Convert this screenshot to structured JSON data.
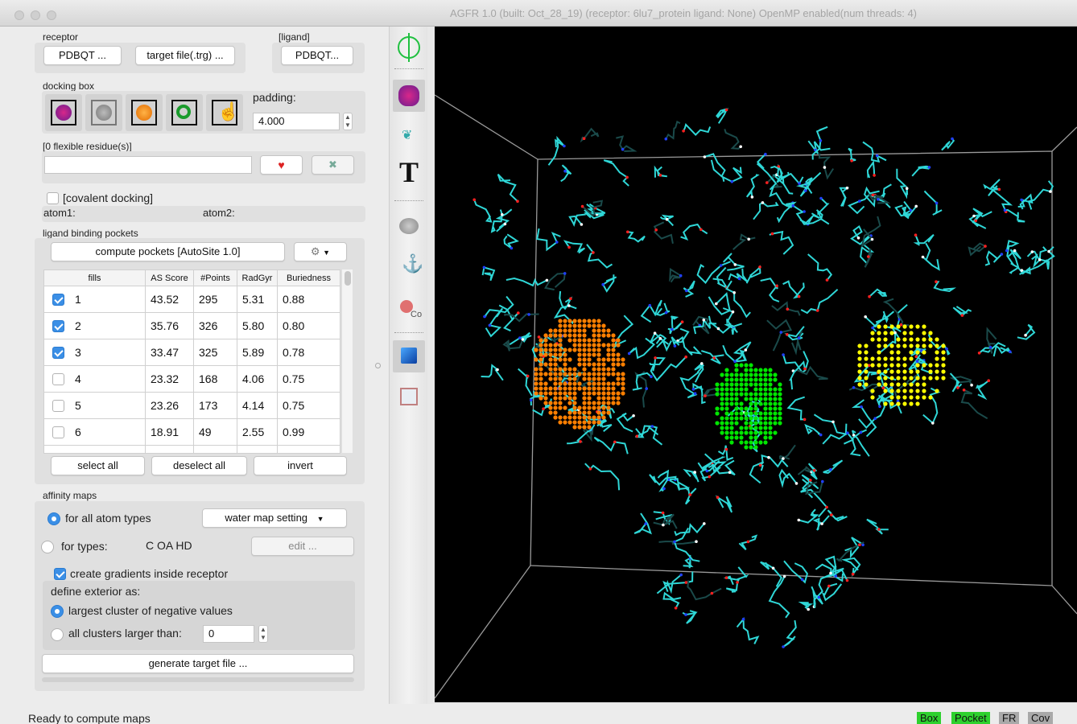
{
  "window": {
    "title": "AGFR 1.0 (built: Oct_28_19) (receptor: 6lu7_protein ligand: None) OpenMP enabled(num threads: 4)"
  },
  "receptor": {
    "label": "receptor",
    "pdbqt_button": "PDBQT ...",
    "target_button": "target file(.trg) ..."
  },
  "ligand": {
    "label": "[ligand]",
    "pdbqt_button": "PDBQT..."
  },
  "docking_box": {
    "label": "docking box",
    "padding_label": "padding:",
    "padding_value": "4.000",
    "modes": [
      "box-receptor-icon",
      "box-ligand-icon",
      "box-pocket-icon",
      "box-residue-icon",
      "box-manual-icon"
    ]
  },
  "flex": {
    "label": "[0 flexible residue(s)]",
    "input_value": ""
  },
  "covalent": {
    "label": "[covalent docking]",
    "checked": false,
    "atom1": "atom1:",
    "atom2": "atom2:"
  },
  "pockets": {
    "label": "ligand binding pockets",
    "compute_button": "compute pockets [AutoSite 1.0]",
    "columns": [
      "fills",
      "AS Score",
      "#Points",
      "RadGyr",
      "Buriedness"
    ],
    "rows": [
      {
        "fill": "1",
        "score": "43.52",
        "points": "295",
        "radgyr": "5.31",
        "buried": "0.88",
        "checked": true
      },
      {
        "fill": "2",
        "score": "35.76",
        "points": "326",
        "radgyr": "5.80",
        "buried": "0.80",
        "checked": true
      },
      {
        "fill": "3",
        "score": "33.47",
        "points": "325",
        "radgyr": "5.89",
        "buried": "0.78",
        "checked": true
      },
      {
        "fill": "4",
        "score": "23.32",
        "points": "168",
        "radgyr": "4.06",
        "buried": "0.75",
        "checked": false
      },
      {
        "fill": "5",
        "score": "23.26",
        "points": "173",
        "radgyr": "4.14",
        "buried": "0.75",
        "checked": false
      },
      {
        "fill": "6",
        "score": "18.91",
        "points": "49",
        "radgyr": "2.55",
        "buried": "0.99",
        "checked": false
      }
    ],
    "select_all": "select all",
    "deselect_all": "deselect all",
    "invert": "invert"
  },
  "affinity": {
    "label": "affinity maps",
    "all_types_label": "for all atom types",
    "water_setting": "water map setting",
    "for_types_label": "for types:",
    "types_value": "C OA HD",
    "edit_button": "edit ...",
    "gradients_label": "create gradients inside receptor",
    "exterior_label": "define exterior as:",
    "largest_cluster_label": "largest cluster of negative values",
    "all_clusters_label": "all clusters larger than:",
    "clusters_value": "0",
    "generate_button": "generate target file ..."
  },
  "toolbar": {
    "text_tool": "T",
    "color_label": "Co"
  },
  "status": {
    "message": "Ready to compute maps",
    "badges": [
      {
        "label": "Box",
        "color": "#2ed12e"
      },
      {
        "label": "Pocket",
        "color": "#2ed12e"
      },
      {
        "label": "FR",
        "color": "#a9a9a9"
      },
      {
        "label": "Cov",
        "color": "#a9a9a9"
      }
    ]
  },
  "colors": {
    "accent": "#3b8fe6",
    "pocket1": "#ff7f00",
    "pocket2": "#00e600",
    "pocket3": "#ffff00",
    "protein": "#2fd7d7"
  }
}
